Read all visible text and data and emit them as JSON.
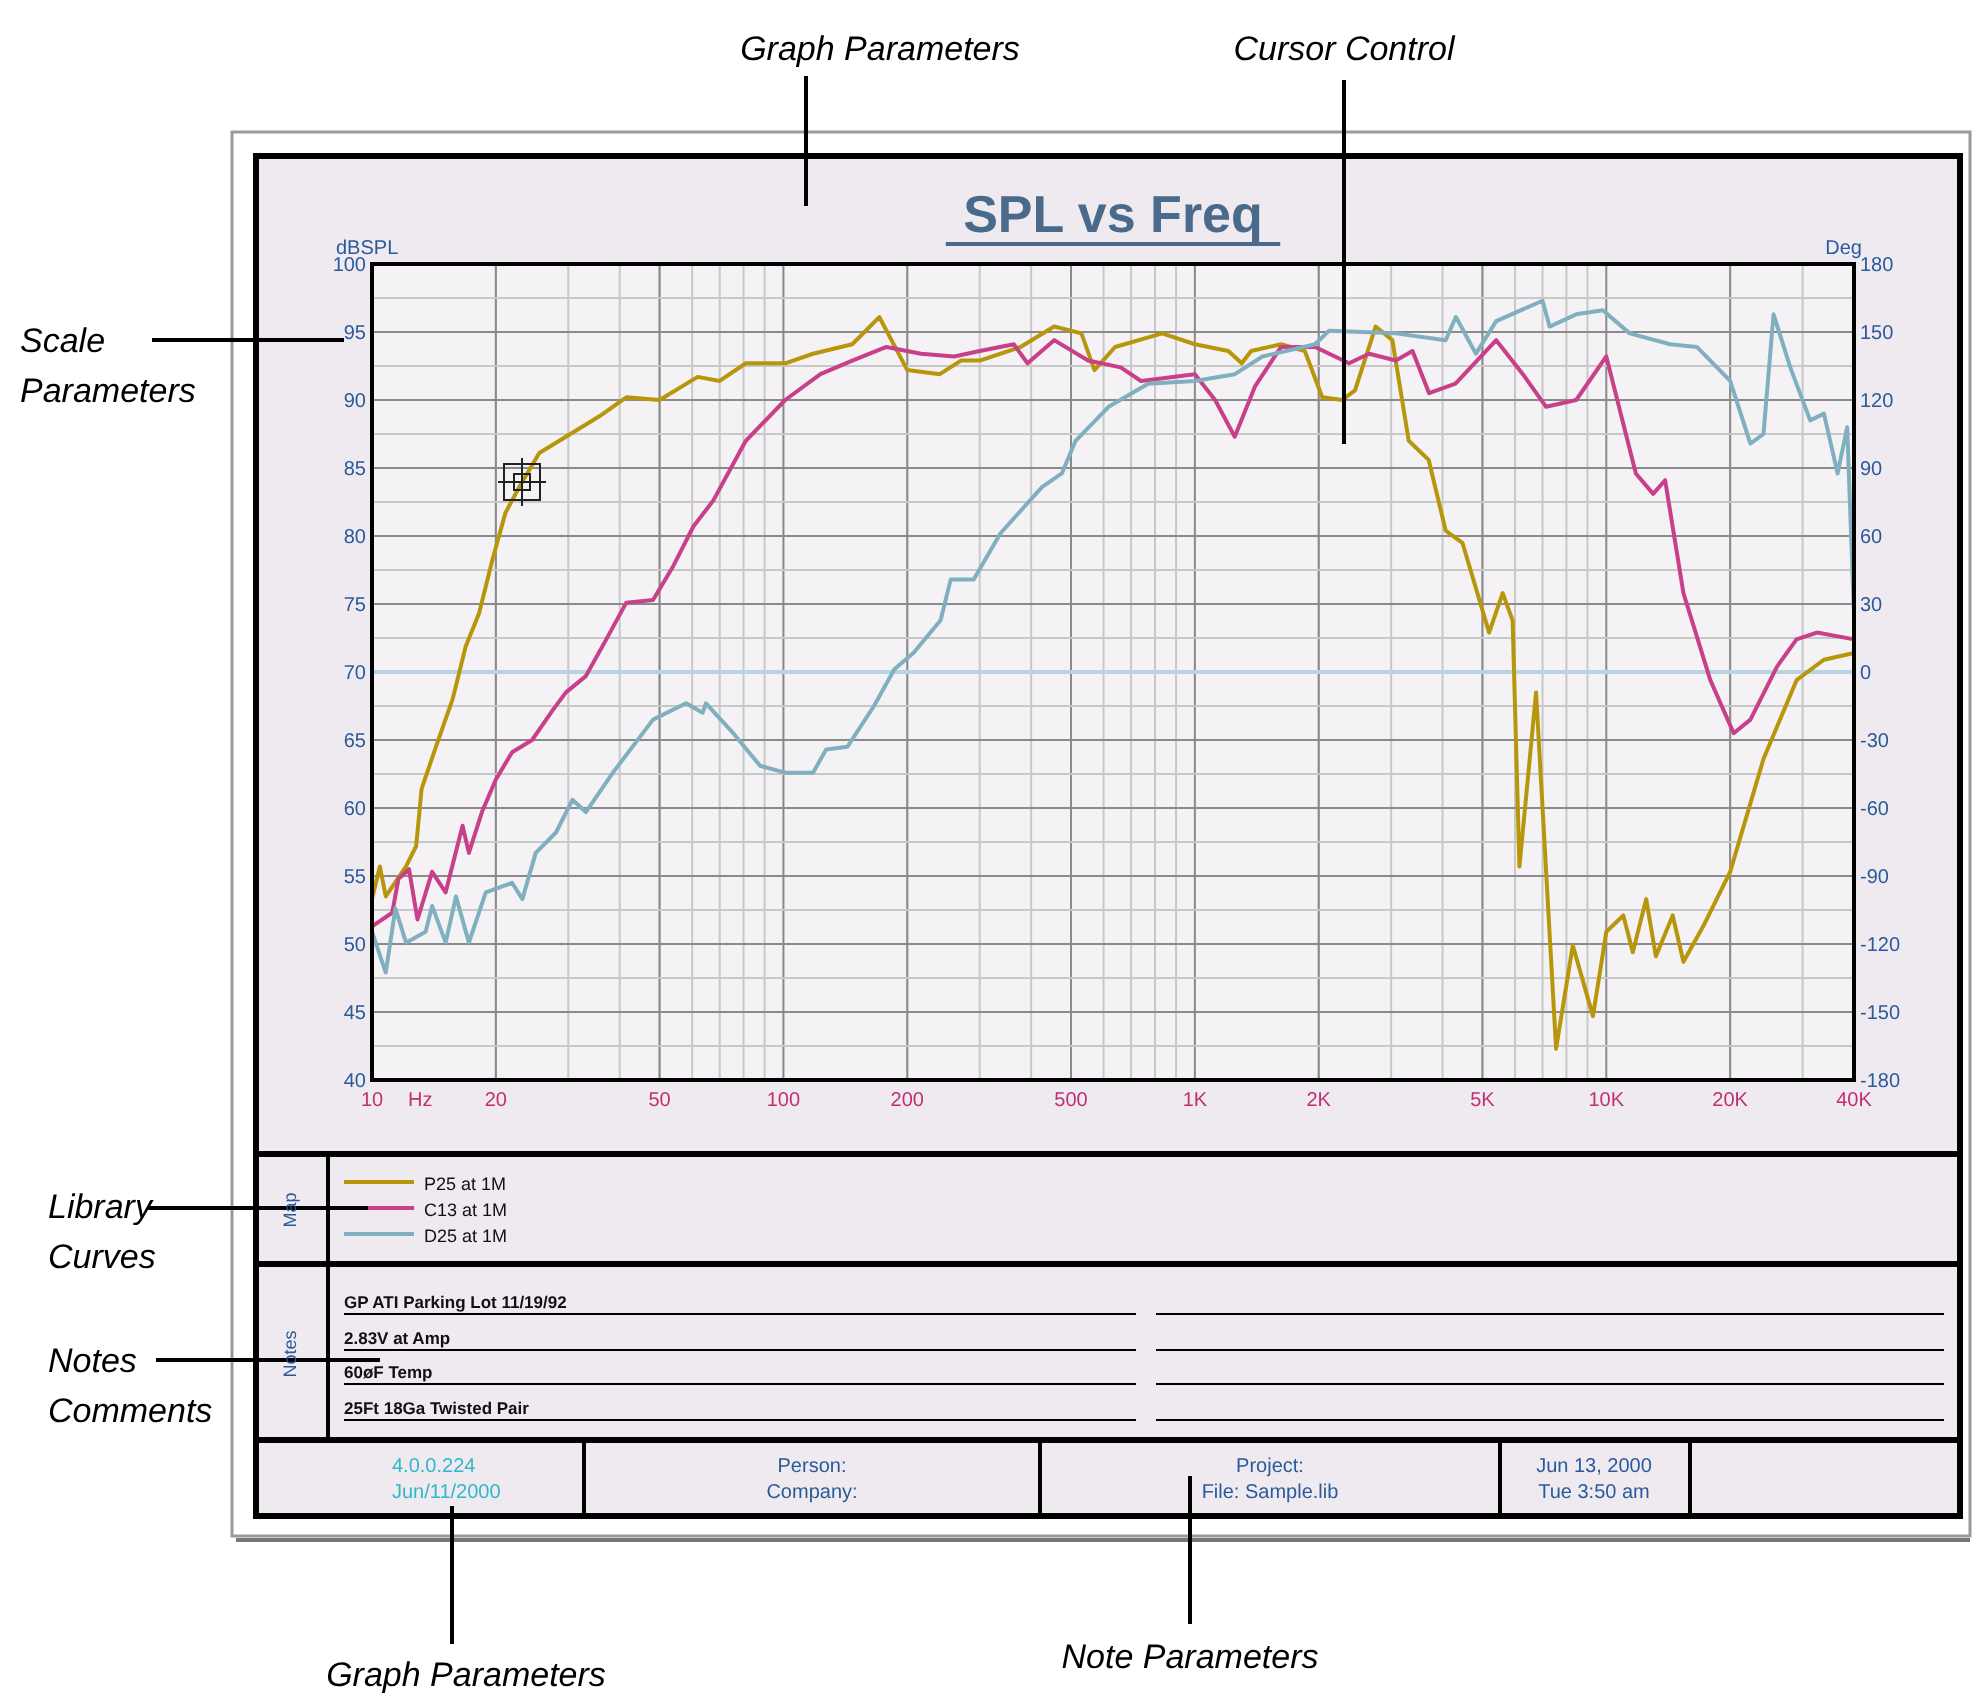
{
  "chart_data": {
    "type": "line",
    "title": "SPL vs Freq",
    "ylabel": "dBSPL",
    "y2label": "Deg",
    "xlabel": "Hz",
    "log": "x",
    "xlim": [
      10,
      40000
    ],
    "xticks": [
      10,
      20,
      50,
      100,
      200,
      500,
      {
        "value": 1000,
        "label": "1K"
      },
      {
        "value": 2000,
        "label": "2K"
      },
      {
        "value": 5000,
        "label": "5K"
      },
      {
        "value": 10000,
        "label": "10K"
      },
      {
        "value": 20000,
        "label": "20K"
      },
      {
        "value": 40000,
        "label": "40K"
      }
    ],
    "ylim": [
      40,
      100
    ],
    "yticks": [
      40,
      45,
      50,
      55,
      60,
      65,
      70,
      75,
      80,
      85,
      90,
      95,
      100
    ],
    "y2lim": [
      -180,
      180
    ],
    "y2ticks": [
      -180,
      -150,
      -120,
      -90,
      -60,
      -30,
      0,
      30,
      60,
      90,
      120,
      150,
      180
    ],
    "grid": true,
    "legend": "bottom",
    "ref_lines": [
      {
        "axis": "y2",
        "value": 0,
        "color": "#b8d4e2"
      }
    ],
    "series": [
      {
        "name": "P25 at 1M",
        "color": "#b8960c",
        "x": [
          10,
          10.45,
          10.8,
          12.1,
          12.8,
          13.2,
          14.3,
          15.7,
          16.9,
          18.2,
          19.6,
          21.1,
          22.8,
          25.5,
          29.6,
          35.7,
          41.5,
          50,
          61.9,
          70,
          81,
          101,
          118,
          147,
          171,
          200,
          240,
          270,
          300,
          377,
          455,
          530,
          570,
          640,
          833,
          1000,
          1206,
          1300,
          1370,
          1620,
          1850,
          2040,
          2280,
          2450,
          2750,
          3020,
          3310,
          3700,
          4070,
          4470,
          5190,
          5600,
          5920,
          6150,
          6750,
          7550,
          8290,
          9280,
          10000,
          11000,
          11600,
          12500,
          13200,
          14500,
          15400,
          17200,
          20000,
          24100,
          29000,
          33800,
          40000
        ],
        "values": [
          53.3,
          55.7,
          53.5,
          55.7,
          57.2,
          61.4,
          64.5,
          68,
          71.9,
          74.3,
          78.2,
          81.7,
          83.6,
          86.1,
          87.3,
          88.8,
          90.2,
          90,
          91.7,
          91.4,
          92.7,
          92.7,
          93.4,
          94.1,
          96.1,
          92.2,
          91.9,
          92.9,
          92.9,
          93.9,
          95.4,
          94.9,
          92.2,
          93.9,
          94.9,
          94.1,
          93.6,
          92.7,
          93.6,
          94.1,
          93.6,
          90.2,
          90,
          90.7,
          95.4,
          94.4,
          87,
          85.6,
          80.4,
          79.5,
          72.9,
          75.8,
          73.8,
          55.7,
          68.5,
          42.3,
          49.9,
          44.7,
          50.9,
          52.1,
          49.4,
          53.3,
          49.1,
          52.1,
          48.7,
          51.3,
          55.3,
          63.6,
          69.4,
          70.9,
          71.4
        ]
      },
      {
        "name": "C13 at 1M",
        "color": "#c8408a",
        "x": [
          10,
          11.2,
          11.6,
          12.3,
          12.9,
          14,
          15.1,
          16.6,
          17.2,
          18.5,
          20,
          21.9,
          24.5,
          27.5,
          29.6,
          33.1,
          37.1,
          41.5,
          48.2,
          54,
          60.4,
          67.5,
          81,
          101,
          123,
          147,
          178,
          216,
          260,
          300,
          363,
          392,
          455,
          550,
          660,
          740,
          1000,
          1120,
          1250,
          1400,
          1620,
          1960,
          2370,
          2650,
          3080,
          3380,
          3710,
          4300,
          5400,
          6270,
          7140,
          8450,
          10000,
          11800,
          13000,
          13900,
          15400,
          17900,
          20400,
          22400,
          26000,
          29000,
          32500,
          40000
        ],
        "values": [
          51.3,
          52.3,
          54.8,
          55.5,
          51.8,
          55.3,
          53.8,
          58.7,
          56.7,
          59.7,
          62.1,
          64.1,
          65,
          67.2,
          68.5,
          69.7,
          72.4,
          75.1,
          75.3,
          77.8,
          80.7,
          82.6,
          87,
          90,
          91.9,
          92.9,
          93.9,
          93.4,
          93.2,
          93.6,
          94.1,
          92.7,
          94.4,
          92.9,
          92.4,
          91.4,
          91.9,
          90,
          87.3,
          91,
          93.9,
          93.9,
          92.7,
          93.4,
          92.9,
          93.6,
          90.5,
          91.2,
          94.4,
          91.9,
          89.5,
          90,
          93.2,
          84.6,
          83.1,
          84.1,
          75.8,
          69.4,
          65.5,
          66.5,
          70.4,
          72.4,
          72.9,
          72.4
        ]
      },
      {
        "name": "D25 at 1M",
        "color": "#80b0c0",
        "x": [
          10,
          10.8,
          11.4,
          12.1,
          13.5,
          14,
          15.1,
          16,
          17.2,
          18.9,
          21.9,
          23.2,
          25,
          28,
          30.7,
          33.1,
          38.5,
          48.2,
          58,
          63.6,
          64.8,
          75.5,
          87.8,
          101,
          118,
          127,
          143,
          166,
          186,
          207,
          241,
          255,
          290,
          337,
          425,
          475,
          513,
          617,
          770,
          1000,
          1250,
          1460,
          1960,
          2120,
          3080,
          4070,
          4310,
          4820,
          5400,
          7000,
          7280,
          8450,
          9810,
          11400,
          14300,
          16600,
          20000,
          22400,
          24100,
          25500,
          28000,
          31300,
          33800,
          36500,
          38500,
          40000
        ],
        "values": [
          50.9,
          47.9,
          52.6,
          50.1,
          50.9,
          52.8,
          50.1,
          53.5,
          50.1,
          53.8,
          54.5,
          53.3,
          56.7,
          58.2,
          60.6,
          59.7,
          62.6,
          66.5,
          67.7,
          67,
          67.7,
          65.5,
          63.1,
          62.6,
          62.6,
          64.3,
          64.5,
          67.5,
          70.2,
          71.4,
          73.8,
          76.8,
          76.8,
          80.2,
          83.6,
          84.6,
          87,
          89.5,
          91.2,
          91.4,
          91.9,
          93.2,
          94.1,
          95.1,
          94.9,
          94.4,
          96.1,
          93.4,
          95.8,
          97.3,
          95.4,
          96.3,
          96.6,
          94.9,
          94.1,
          93.9,
          91.4,
          86.8,
          87.5,
          96.3,
          92.4,
          88.5,
          89,
          84.6,
          88,
          74.3
        ]
      }
    ],
    "annotations": [
      "Graph Parameters",
      "Cursor Control",
      "Scale Parameters",
      "Library Curves",
      "Notes Comments",
      "Graph Parameters",
      "Note Parameters",
      "Map",
      "Notes",
      "GP ATI Parking Lot 11/19/92",
      "2.83V at Amp",
      "60øF Temp",
      "25Ft 18Ga Twisted Pair",
      "4.0.0.224",
      "Jun/11/2000",
      "Person:",
      "Company:",
      "Project:",
      "File: Sample.lib",
      "Jun 13, 2000",
      "Tue 3:50 am"
    ]
  }
}
